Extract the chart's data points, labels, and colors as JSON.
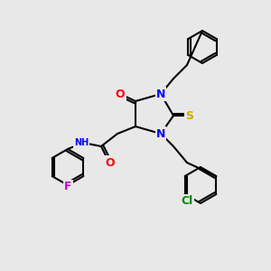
{
  "bg_color": "#e8e8e8",
  "bond_color": "#000000",
  "bond_lw": 1.5,
  "atom_colors": {
    "N": "#0000ff",
    "O": "#ff0000",
    "S": "#ccaa00",
    "F": "#cc00cc",
    "Cl": "#008800",
    "H": "#888888",
    "C": "#000000"
  },
  "font_size": 8
}
